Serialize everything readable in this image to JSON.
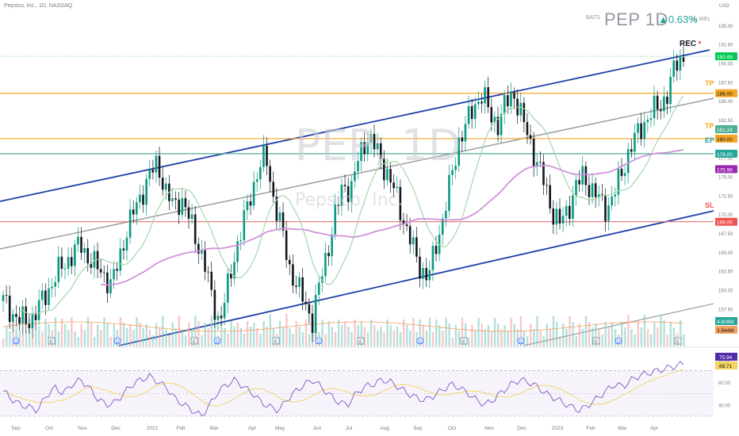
{
  "header": {
    "symbol_line": "Pepsico, Inc., 1D, NASDAQ",
    "ticker": "PEP 1D",
    "exchange": "BATS",
    "change": "▲0.63%",
    "author": "by WEL",
    "currency": "USD",
    "watermark_big": "PEP, 1D",
    "watermark_small": "Pepsico, Inc."
  },
  "annotations": {
    "rec": "REC",
    "tp1": "TP",
    "tp2": "TP",
    "ep": "EP",
    "sl": "SL"
  },
  "colors": {
    "up": "#26a69a",
    "down": "#ef5350",
    "candle_up": "#089981",
    "candle_down": "#131722",
    "channel": "#1e3fa8",
    "midline": "#9e9e9e",
    "tp": "#f5a623",
    "ep": "#4caf93",
    "sl": "#e57373",
    "ma_fast": "#a5d6a7",
    "ma_slow": "#ce93d8",
    "rsi": "#7e57c2"
  },
  "chart_data": {
    "type": "candlestick",
    "x": [
      "Sep",
      "Oct",
      "Nov",
      "Dec",
      "2022",
      "Feb",
      "Mar",
      "Apr",
      "May",
      "Jun",
      "Jul",
      "Aug",
      "Sep",
      "Oct",
      "Nov",
      "Dec",
      "2023",
      "Feb",
      "Mar",
      "Apr"
    ],
    "price_axis": {
      "ticks": [
        "195.00",
        "192.50",
        "190.00",
        "187.50",
        "185.00",
        "182.50",
        "180.00",
        "177.50",
        "175.00",
        "172.50",
        "170.00",
        "167.50",
        "165.00",
        "162.50",
        "160.00",
        "157.50",
        "155.00"
      ],
      "ylim": [
        152.5,
        197.5
      ]
    },
    "levels": [
      {
        "name": "TP",
        "value": 186.0,
        "label": "186.00"
      },
      {
        "name": "TP",
        "value": 180.0,
        "label": "180.00"
      },
      {
        "name": "EP",
        "value": 178.0,
        "label": "178.00"
      },
      {
        "name": "SL",
        "value": 169.0,
        "label": "169.00"
      }
    ],
    "last_price": {
      "value": 190.89,
      "label": "190.89"
    },
    "ma_fast_last": {
      "value": 181.24,
      "label": "181.24"
    },
    "ma_slow_last": {
      "value": 175.96,
      "label": "175.96"
    },
    "volume": {
      "last": "4.609M",
      "ma": "3.944M"
    },
    "close_path": [
      158.5,
      157.2,
      156.0,
      155.8,
      156.6,
      158.4,
      160.3,
      162.2,
      163.5,
      164.8,
      166.0,
      164.3,
      163.0,
      162.1,
      160.5,
      164.0,
      168.0,
      170.5,
      173.0,
      175.2,
      176.8,
      173.0,
      171.0,
      172.2,
      169.5,
      166.7,
      163.5,
      159.0,
      155.6,
      160.0,
      165.0,
      168.5,
      172.5,
      176.0,
      177.6,
      172.0,
      168.0,
      163.0,
      160.5,
      158.3,
      156.0,
      161.0,
      165.5,
      170.0,
      174.0,
      173.2,
      177.5,
      180.3,
      179.0,
      177.0,
      174.5,
      172.0,
      168.5,
      165.5,
      162.8,
      161.5,
      166.0,
      170.0,
      175.0,
      180.0,
      182.0,
      184.5,
      186.0,
      183.0,
      182.0,
      184.5,
      186.2,
      183.0,
      180.0,
      177.0,
      174.0,
      170.5,
      168.7,
      170.5,
      173.5,
      175.0,
      173.5,
      172.0,
      170.7,
      172.5,
      175.5,
      178.5,
      180.5,
      182.3,
      183.5,
      184.5,
      186.0,
      190.0,
      190.89
    ],
    "events": [
      "D",
      "E",
      "D",
      "E",
      "D",
      "E",
      "D",
      "E",
      "D",
      "E",
      "D",
      "E",
      "D",
      "E"
    ],
    "rsi": {
      "ticks": [
        "80.00",
        "60.00",
        "40.00"
      ],
      "last": "75.94",
      "ma": "68.71",
      "path": [
        52,
        45,
        40,
        38,
        35,
        48,
        55,
        50,
        58,
        62,
        55,
        45,
        40,
        42,
        50,
        58,
        62,
        65,
        60,
        55,
        45,
        40,
        35,
        30,
        40,
        52,
        58,
        62,
        55,
        50,
        42,
        38,
        35,
        45,
        52,
        58,
        62,
        55,
        48,
        42,
        40,
        50,
        56,
        58,
        62,
        60,
        55,
        50,
        46,
        44,
        48,
        53,
        58,
        55,
        50,
        44,
        40,
        45,
        52,
        58,
        62,
        60,
        56,
        50,
        46,
        42,
        38,
        35,
        40,
        46,
        52,
        58,
        56,
        62,
        66,
        68,
        70,
        72,
        74,
        75.94
      ]
    }
  }
}
